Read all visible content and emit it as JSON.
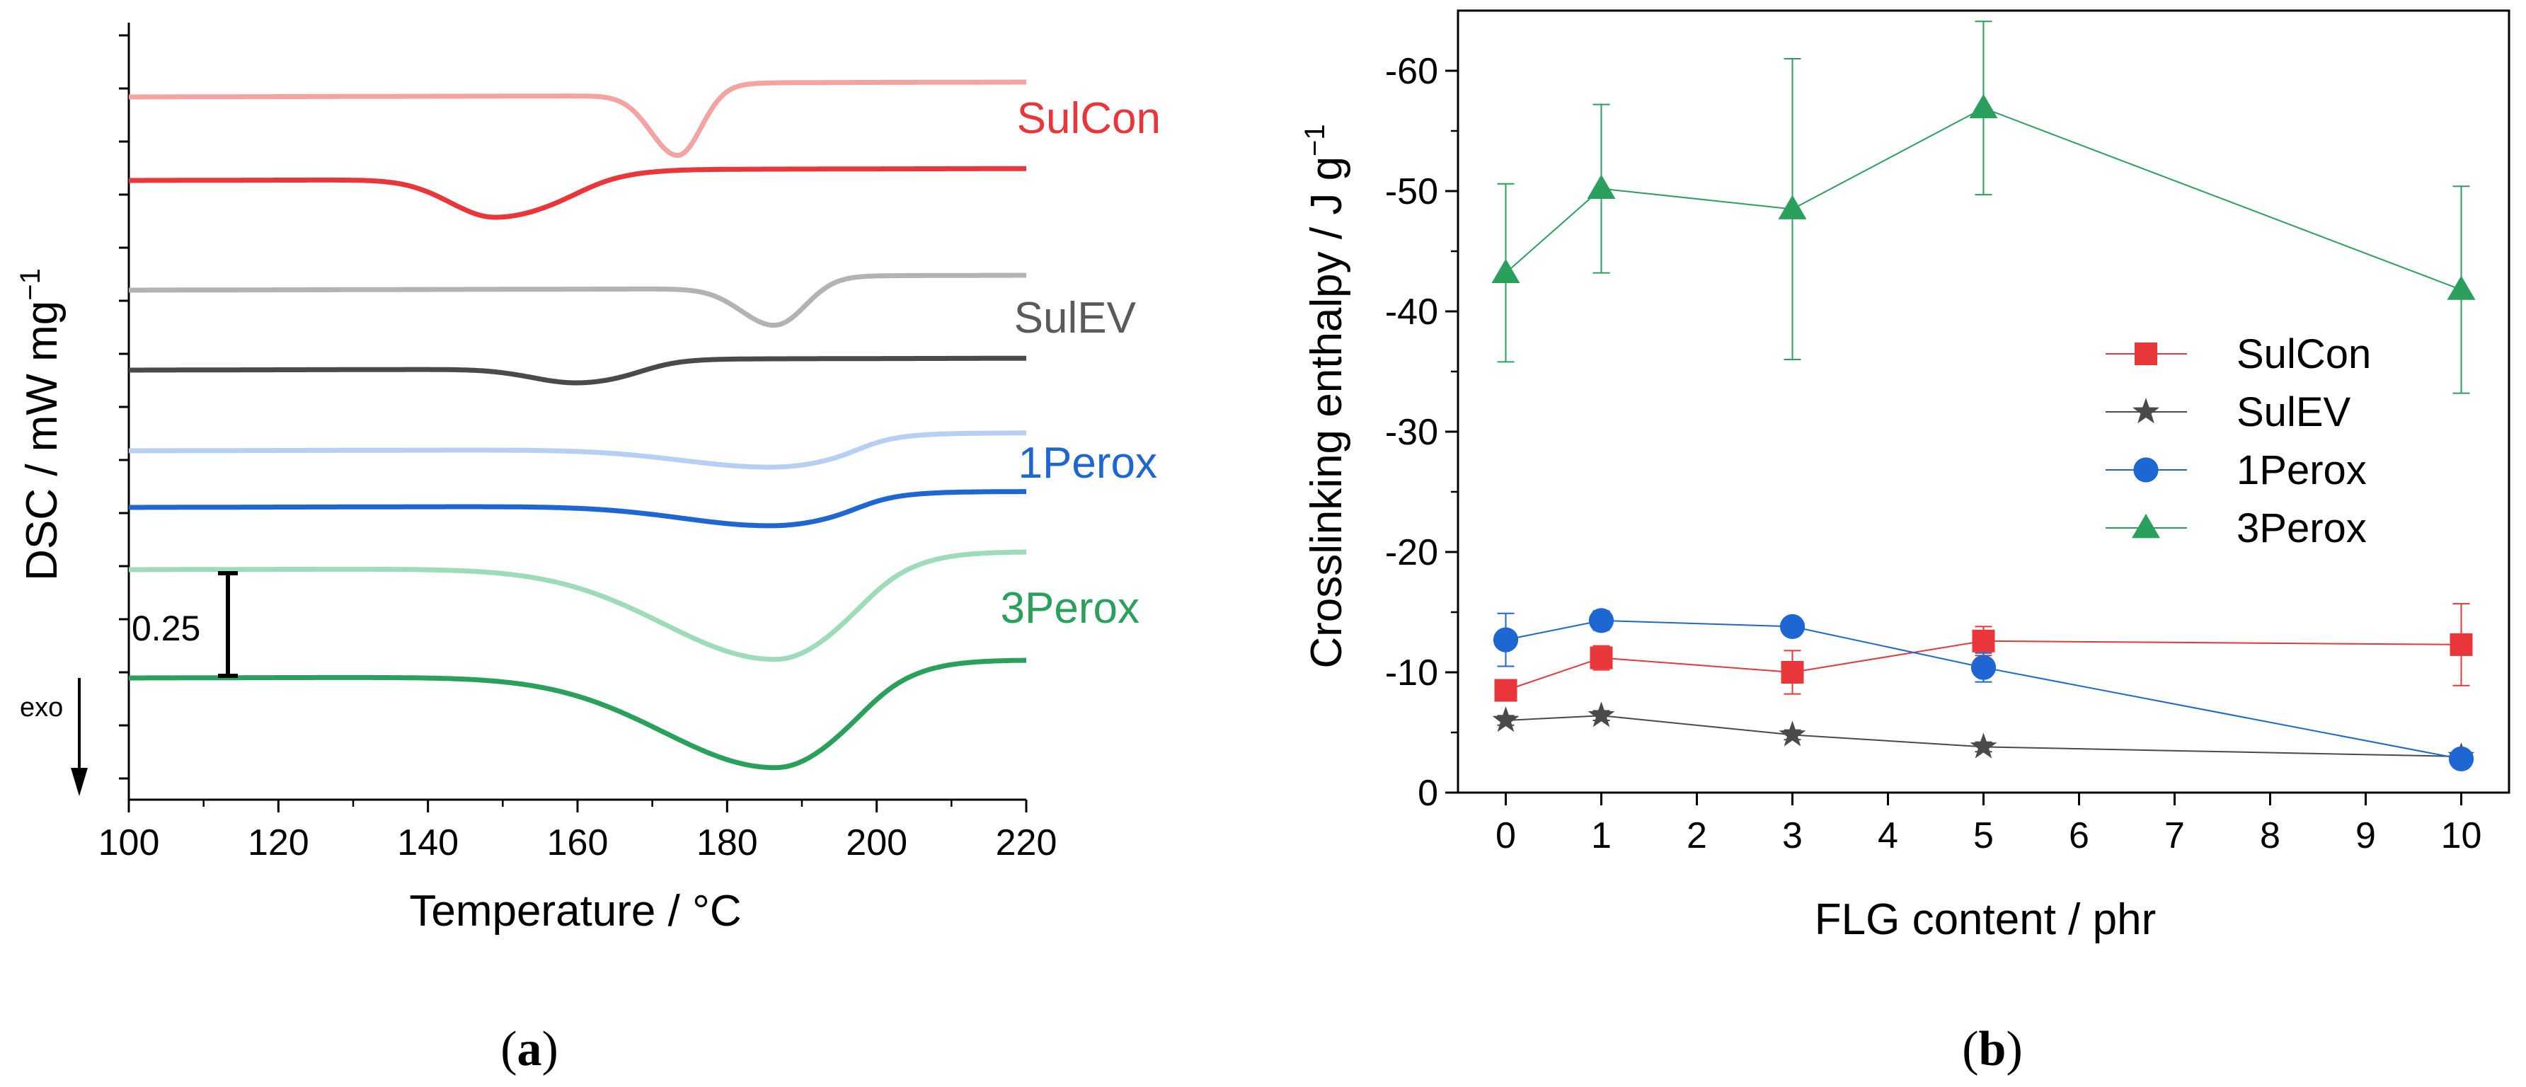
{
  "chart_data": [
    {
      "type": "line",
      "panel_label": "(a)",
      "panel_letter": "a",
      "xlabel": "Temperature  /  °C",
      "ylabel": "DSC  /  mW mg",
      "ylabel_superscript": "−1",
      "xlim": [
        100,
        220
      ],
      "x_ticks": [
        "100",
        "120",
        "140",
        "160",
        "180",
        "200",
        "220"
      ],
      "y_ticks_count": 14,
      "scale_bar_label": "0.25",
      "exo_label": "exo",
      "series": [
        {
          "name": "SulCon",
          "variant": "neat",
          "color": "#f4a3a3",
          "baseline": 0.0,
          "end": 0.13,
          "peaks": [
            {
              "center": 173.5,
              "depth": 0.62,
              "width_left": 3.6,
              "width_right": 3.0
            }
          ]
        },
        {
          "name": "SulCon",
          "variant": "FLG",
          "color": "#e8363a",
          "baseline": 0.0,
          "end": 0.1,
          "peaks": [
            {
              "center": 149,
              "depth": 0.38,
              "width_left": 6,
              "width_right": 9
            }
          ]
        },
        {
          "name": "SulEV",
          "variant": "neat",
          "color": "#b3b3b3",
          "baseline": 0.0,
          "end": 0.13,
          "peaks": [
            {
              "center": 186.5,
              "depth": 0.38,
              "width_left": 4.5,
              "width_right": 3.8
            }
          ]
        },
        {
          "name": "SulEV",
          "variant": "FLG",
          "color": "#4a4a4a",
          "baseline": 0.0,
          "end": 0.1,
          "peaks": [
            {
              "center": 160,
              "depth": 0.14,
              "width_left": 6,
              "width_right": 7
            }
          ]
        },
        {
          "name": "1Perox",
          "variant": "neat",
          "color": "#b7cff3",
          "baseline": 0.0,
          "end": 0.16,
          "peaks": [
            {
              "center": 186,
              "depth": 0.18,
              "width_left": 12,
              "width_right": 9
            }
          ]
        },
        {
          "name": "1Perox",
          "variant": "FLG",
          "color": "#1e66d2",
          "baseline": 0.0,
          "end": 0.14,
          "peaks": [
            {
              "center": 186,
              "depth": 0.2,
              "width_left": 12,
              "width_right": 9
            }
          ]
        },
        {
          "name": "3Perox",
          "variant": "neat",
          "color": "#9edbb9",
          "baseline": 0.0,
          "end": 0.16,
          "peaks": [
            {
              "center": 186.5,
              "depth": 0.92,
              "width_left": 15,
              "width_right": 9.5
            }
          ]
        },
        {
          "name": "3Perox",
          "variant": "FLG",
          "color": "#2aa05c",
          "baseline": 0.0,
          "end": 0.16,
          "peaks": [
            {
              "center": 186.5,
              "depth": 0.92,
              "width_left": 15,
              "width_right": 9.5
            }
          ]
        }
      ],
      "curve_labels": [
        {
          "text": "SulCon",
          "color": "#e8363a"
        },
        {
          "text": "SulEV",
          "color": "#5a5a5a"
        },
        {
          "text": "1Perox",
          "color": "#1e66d2"
        },
        {
          "text": "3Perox",
          "color": "#2aa05c"
        }
      ]
    },
    {
      "type": "line",
      "panel_label": "(b)",
      "panel_letter": "b",
      "xlabel": "FLG content  /  phr",
      "ylabel": "Crosslinking enthalpy  /  J g",
      "ylabel_superscript": "−1",
      "xlim": [
        -0.5,
        10.5
      ],
      "ylim": [
        0,
        -65
      ],
      "x_ticks": [
        0,
        1,
        2,
        3,
        4,
        5,
        6,
        7,
        8,
        9,
        10
      ],
      "y_ticks": [
        0,
        -10,
        -20,
        -30,
        -40,
        -50,
        -60
      ],
      "legend_position": "center-right",
      "series": [
        {
          "name": "SulCon",
          "color": "#e8363a",
          "marker": "square",
          "x": [
            0,
            1,
            3,
            5,
            10
          ],
          "y": [
            -8.5,
            -11.2,
            -10.0,
            -12.6,
            -12.3
          ],
          "err": [
            0.8,
            1.0,
            1.8,
            1.2,
            3.4
          ]
        },
        {
          "name": "SulEV",
          "color": "#4a4a4a",
          "marker": "star",
          "x": [
            0,
            1,
            3,
            5,
            10
          ],
          "y": [
            -6.0,
            -6.4,
            -4.8,
            -3.8,
            -3.0
          ],
          "err": [
            0.4,
            0.4,
            0.4,
            0.4,
            0.3
          ]
        },
        {
          "name": "1Perox",
          "color": "#1e66d2",
          "marker": "circle",
          "x": [
            0,
            1,
            3,
            5,
            10
          ],
          "y": [
            -12.7,
            -14.3,
            -13.8,
            -10.4,
            -2.8
          ],
          "err": [
            2.2,
            0.8,
            0.6,
            1.2,
            0.6
          ]
        },
        {
          "name": "3Perox",
          "color": "#2aa05c",
          "marker": "triangle",
          "x": [
            0,
            1,
            3,
            5,
            10
          ],
          "y": [
            -43.2,
            -50.2,
            -48.5,
            -56.9,
            -41.8
          ],
          "err": [
            7.4,
            7.0,
            12.5,
            7.2,
            8.6
          ]
        }
      ]
    }
  ]
}
